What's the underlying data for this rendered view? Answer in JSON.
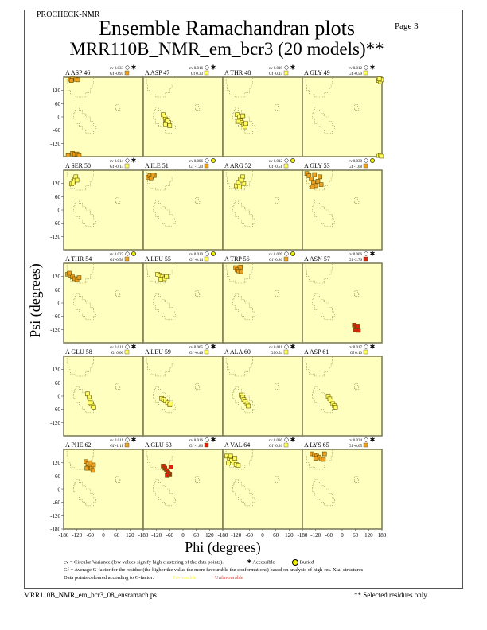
{
  "header": {
    "program": "PROCHECK-NMR",
    "page": "Page  3",
    "title": "Ensemble Ramachandran plots",
    "subtitle": "MRR110B_NMR_em_bcr3 (20 models)**"
  },
  "footer": {
    "filename": "MRR110B_NMR_em_bcr3_08_ensramach.ps",
    "note": "** Selected residues only"
  },
  "legend": {
    "cv_text": "cv = Circular Variance (low values signify high clustering of the data points).",
    "accessible": "Accessible",
    "buried": "Buried",
    "gf_text": "Gf = Average G-factor for the residue (the higher the value the more favourable the conformations) based on analysis of high-res. Xtal structures",
    "colour_text": "Data points coloured according to G-factor:",
    "favourable": "Favourable",
    "unfavourable": "Unfavourable"
  },
  "colors": {
    "plot_bg": "#ffffc0",
    "favourable": "#ffff60",
    "moderate": "#f0a020",
    "unfavourable": "#e02010",
    "region": "#888844"
  },
  "chart_data": {
    "type": "scatter",
    "xlabel": "Phi (degrees)",
    "ylabel": "Psi (degrees)",
    "xlim": [
      -180,
      180
    ],
    "ylim": [
      -180,
      180
    ],
    "x_ticks": [
      "-180",
      "-120",
      "-60",
      "0",
      "60",
      "120",
      "180"
    ],
    "y_ticks": [
      "-180",
      "-120",
      "-60",
      "0",
      "60",
      "120"
    ],
    "plots": [
      {
        "residue": "A ASP 46",
        "cv": "cv 0.033",
        "gf": "Gf -0.95",
        "gf_color": "#f0a020",
        "access": "accessible",
        "points": [
          [
            -150,
            170
          ],
          [
            -140,
            172
          ],
          [
            -125,
            170
          ],
          [
            -115,
            168
          ],
          [
            -145,
            165
          ],
          [
            -140,
            -165
          ],
          [
            -130,
            -170
          ],
          [
            -120,
            -168
          ],
          [
            -110,
            -172
          ],
          [
            -160,
            -172
          ]
        ]
      },
      {
        "residue": "A ASP 47",
        "cv": "cv 0.016",
        "gf": "Gf 0.33",
        "gf_color": "#ffff60",
        "access": "accessible",
        "points": [
          [
            -90,
            10
          ],
          [
            -85,
            0
          ],
          [
            -80,
            -10
          ],
          [
            -75,
            -20
          ],
          [
            -70,
            -30
          ],
          [
            -65,
            -25
          ],
          [
            -60,
            -40
          ],
          [
            -80,
            -35
          ],
          [
            -72,
            -15
          ]
        ]
      },
      {
        "residue": "A THR 48",
        "cv": "cv 0.019",
        "gf": "Gf -0.15",
        "gf_color": "#ffff60",
        "access": "accessible",
        "points": [
          [
            -115,
            10
          ],
          [
            -105,
            0
          ],
          [
            -100,
            -15
          ],
          [
            -95,
            -25
          ],
          [
            -85,
            -35
          ],
          [
            -80,
            -45
          ],
          [
            -110,
            -20
          ],
          [
            -90,
            5
          ],
          [
            -75,
            -30
          ]
        ]
      },
      {
        "residue": "A GLY 49",
        "cv": "cv 0.012",
        "gf": "Gf -0.59",
        "gf_color": "#ffff60",
        "access": "accessible",
        "points": [
          [
            165,
            165
          ],
          [
            172,
            160
          ],
          [
            178,
            168
          ],
          [
            168,
            172
          ],
          [
            165,
            -175
          ],
          [
            172,
            -172
          ],
          [
            178,
            -178
          ]
        ]
      },
      {
        "residue": "A SER 50",
        "cv": "cv 0.014",
        "gf": "Gf -0.13",
        "gf_color": "#ffff60",
        "access": "accessible",
        "points": [
          [
            -144,
            118
          ],
          [
            -135,
            130
          ],
          [
            -130,
            140
          ],
          [
            -125,
            150
          ],
          [
            -120,
            135
          ],
          [
            -138,
            122
          ]
        ]
      },
      {
        "residue": "A ILE 51",
        "cv": "cv 0.006",
        "gf": "Gf -1.20",
        "gf_color": "#f0a020",
        "access": "buried",
        "points": [
          [
            -158,
            148
          ],
          [
            -150,
            155
          ],
          [
            -140,
            150
          ],
          [
            -130,
            156
          ],
          [
            -145,
            145
          ],
          [
            -135,
            158
          ]
        ]
      },
      {
        "residue": "A ARG 52",
        "cv": "cv 0.012",
        "gf": "Gf -0.51",
        "gf_color": "#ffff60",
        "access": "buried",
        "points": [
          [
            -119,
            110
          ],
          [
            -110,
            125
          ],
          [
            -100,
            140
          ],
          [
            -90,
            150
          ],
          [
            -85,
            120
          ],
          [
            -105,
            105
          ],
          [
            -95,
            135
          ]
        ]
      },
      {
        "residue": "A GLY 53",
        "cv": "cv 0.038",
        "gf": "Gf -1.08",
        "gf_color": "#f0a020",
        "access": "buried",
        "points": [
          [
            -160,
            165
          ],
          [
            -150,
            155
          ],
          [
            -140,
            140
          ],
          [
            -130,
            125
          ],
          [
            -120,
            110
          ],
          [
            -110,
            130
          ],
          [
            -100,
            150
          ],
          [
            -95,
            115
          ],
          [
            -125,
            160
          ],
          [
            -135,
            105
          ]
        ]
      },
      {
        "residue": "A THR 54",
        "cv": "cv 0.027",
        "gf": "Gf -0.58",
        "gf_color": "#f0a020",
        "access": "buried",
        "points": [
          [
            -162,
            130
          ],
          [
            -150,
            125
          ],
          [
            -140,
            118
          ],
          [
            -130,
            110
          ],
          [
            -120,
            106
          ],
          [
            -110,
            115
          ],
          [
            -155,
            135
          ]
        ]
      },
      {
        "residue": "A LEU 55",
        "cv": "cv 0.010",
        "gf": "Gf -0.14",
        "gf_color": "#ffff60",
        "access": "buried",
        "points": [
          [
            -115,
            130
          ],
          [
            -105,
            125
          ],
          [
            -95,
            118
          ],
          [
            -85,
            110
          ],
          [
            -75,
            120
          ],
          [
            -100,
            108
          ]
        ]
      },
      {
        "residue": "A TRP 56",
        "cv": "cv 0.009",
        "gf": "Gf -0.86",
        "gf_color": "#f0a020",
        "access": "buried",
        "points": [
          [
            -122,
            160
          ],
          [
            -115,
            150
          ],
          [
            -108,
            145
          ],
          [
            -100,
            163
          ],
          [
            -98,
            142
          ]
        ]
      },
      {
        "residue": "A ASN 57",
        "cv": "cv 0.006",
        "gf": "Gf -2.76",
        "gf_color": "#e02010",
        "access": "accessible",
        "points": [
          [
            55,
            -100
          ],
          [
            62,
            -110
          ],
          [
            68,
            -118
          ],
          [
            74,
            -124
          ],
          [
            60,
            -122
          ],
          [
            70,
            -104
          ]
        ]
      },
      {
        "residue": "A GLU 58",
        "cv": "cv 0.011",
        "gf": "Gf 0.00",
        "gf_color": "#ffff60",
        "access": "accessible",
        "points": [
          [
            -72,
            10
          ],
          [
            -65,
            -5
          ],
          [
            -60,
            -20
          ],
          [
            -55,
            -35
          ],
          [
            -48,
            -45
          ],
          [
            -44,
            -50
          ],
          [
            -62,
            -30
          ]
        ]
      },
      {
        "residue": "A LEU 59",
        "cv": "cv 0.005",
        "gf": "Gf -0.46",
        "gf_color": "#ffff60",
        "access": "accessible",
        "points": [
          [
            -97,
            -10
          ],
          [
            -88,
            -15
          ],
          [
            -80,
            -22
          ],
          [
            -70,
            -30
          ],
          [
            -60,
            -40
          ],
          [
            -55,
            -35
          ]
        ]
      },
      {
        "residue": "A ALA 60",
        "cv": "cv 0.011",
        "gf": "Gf 0.54",
        "gf_color": "#ffff60",
        "access": "accessible",
        "points": [
          [
            -97,
            5
          ],
          [
            -90,
            -5
          ],
          [
            -85,
            -15
          ],
          [
            -78,
            -25
          ],
          [
            -70,
            -35
          ],
          [
            -65,
            -45
          ]
        ]
      },
      {
        "residue": "A ASP 61",
        "cv": "cv 0.017",
        "gf": "Gf 0.10",
        "gf_color": "#ffff60",
        "access": "accessible",
        "points": [
          [
            -63,
            0
          ],
          [
            -56,
            -12
          ],
          [
            -50,
            -22
          ],
          [
            -42,
            -34
          ],
          [
            -35,
            -44
          ],
          [
            -30,
            -50
          ]
        ]
      },
      {
        "residue": "A PHE 62",
        "cv": "cv 0.011",
        "gf": "Gf -1.11",
        "gf_color": "#f0a020",
        "access": "accessible",
        "points": [
          [
            -79,
            125
          ],
          [
            -70,
            115
          ],
          [
            -62,
            105
          ],
          [
            -55,
            95
          ],
          [
            -48,
            85
          ],
          [
            -45,
            110
          ],
          [
            -75,
            95
          ],
          [
            -60,
            120
          ]
        ]
      },
      {
        "residue": "A GLU 63",
        "cv": "cv 0.016",
        "gf": "Gf -1.86",
        "gf_color": "#e02010",
        "access": "accessible",
        "points": [
          [
            -90,
            105
          ],
          [
            -82,
            95
          ],
          [
            -75,
            85
          ],
          [
            -68,
            75
          ],
          [
            -60,
            65
          ],
          [
            -55,
            100
          ],
          [
            -65,
            70
          ],
          [
            -72,
            62
          ]
        ]
      },
      {
        "residue": "A VAL 64",
        "cv": "cv 0.030",
        "gf": "Gf -0.26",
        "gf_color": "#ffff60",
        "access": "accessible",
        "points": [
          [
            -162,
            150
          ],
          [
            -150,
            140
          ],
          [
            -140,
            130
          ],
          [
            -130,
            120
          ],
          [
            -120,
            112
          ],
          [
            -110,
            108
          ],
          [
            -145,
            150
          ],
          [
            -125,
            140
          ],
          [
            -155,
            118
          ]
        ]
      },
      {
        "residue": "A LYS 65",
        "cv": "cv 0.024",
        "gf": "Gf -0.65",
        "gf_color": "#f0a020",
        "access": "accessible",
        "points": [
          [
            -137,
            160
          ],
          [
            -125,
            155
          ],
          [
            -115,
            150
          ],
          [
            -105,
            145
          ],
          [
            -95,
            138
          ],
          [
            -85,
            135
          ],
          [
            -80,
            160
          ],
          [
            -120,
            140
          ]
        ]
      }
    ]
  }
}
